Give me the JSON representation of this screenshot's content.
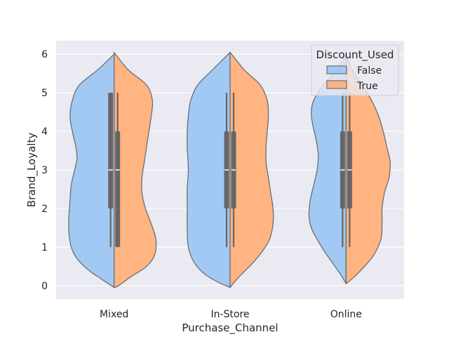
{
  "chart_data": {
    "type": "violin",
    "split": true,
    "xlabel": "Purchase_Channel",
    "ylabel": "Brand_Loyalty",
    "ylim": [
      -0.35,
      6.35
    ],
    "yticks": [
      0,
      1,
      2,
      3,
      4,
      5,
      6
    ],
    "categories": [
      "Mixed",
      "In-Store",
      "Online"
    ],
    "grid": true,
    "legend": {
      "title": "Discount_Used",
      "placement": "top-right",
      "entries": [
        {
          "label": "False",
          "color": "#a1c9f4"
        },
        {
          "label": "True",
          "color": "#ffb482"
        }
      ]
    },
    "colors": {
      "background": "#eaeaf2",
      "grid": "#ffffff",
      "edge": "#6e6e6e",
      "box": "#666666"
    },
    "series": [
      {
        "name": "False",
        "side": "left",
        "violins": [
          {
            "category": "Mixed",
            "y": [
              6.0,
              5.6,
              5.2,
              4.8,
              4.4,
              4.0,
              3.6,
              3.3,
              3.0,
              2.6,
              2.2,
              1.8,
              1.4,
              1.0,
              0.7,
              0.4,
              0.15,
              -0.05
            ],
            "width": [
              0.0,
              0.14,
              0.3,
              0.36,
              0.38,
              0.36,
              0.33,
              0.32,
              0.34,
              0.37,
              0.38,
              0.39,
              0.39,
              0.37,
              0.32,
              0.22,
              0.1,
              0.0
            ]
          },
          {
            "category": "In-Store",
            "y": [
              6.05,
              5.6,
              5.2,
              4.8,
              4.4,
              4.0,
              3.6,
              3.0,
              2.5,
              2.0,
              1.5,
              1.0,
              0.6,
              0.3,
              0.1,
              -0.05
            ],
            "width": [
              0.0,
              0.15,
              0.28,
              0.34,
              0.36,
              0.37,
              0.37,
              0.36,
              0.37,
              0.37,
              0.37,
              0.36,
              0.31,
              0.22,
              0.11,
              0.0
            ]
          },
          {
            "category": "Online",
            "y": [
              6.0,
              5.6,
              5.2,
              4.8,
              4.5,
              4.2,
              3.8,
              3.4,
              3.0,
              2.6,
              2.2,
              1.8,
              1.5,
              1.2,
              0.9,
              0.6,
              0.3,
              0.05
            ],
            "width": [
              0.0,
              0.08,
              0.2,
              0.28,
              0.3,
              0.29,
              0.26,
              0.24,
              0.25,
              0.28,
              0.31,
              0.32,
              0.3,
              0.25,
              0.19,
              0.12,
              0.05,
              0.0
            ]
          }
        ],
        "boxes": [
          {
            "category": "Mixed",
            "q1": 2,
            "median": 3,
            "q3": 5,
            "whisker_low": 1,
            "whisker_high": 5
          },
          {
            "category": "In-Store",
            "q1": 2,
            "median": 3,
            "q3": 4,
            "whisker_low": 1,
            "whisker_high": 5
          },
          {
            "category": "Online",
            "q1": 2,
            "median": 3,
            "q3": 4,
            "whisker_low": 1,
            "whisker_high": 5
          }
        ]
      },
      {
        "name": "True",
        "side": "right",
        "violins": [
          {
            "category": "Mixed",
            "y": [
              6.05,
              5.6,
              5.2,
              4.8,
              4.4,
              4.0,
              3.6,
              3.2,
              2.8,
              2.4,
              2.0,
              1.6,
              1.2,
              0.8,
              0.5,
              0.2,
              0.0,
              -0.05
            ],
            "width": [
              0.0,
              0.12,
              0.28,
              0.33,
              0.32,
              0.3,
              0.28,
              0.26,
              0.24,
              0.24,
              0.27,
              0.32,
              0.36,
              0.35,
              0.28,
              0.13,
              0.04,
              0.0
            ]
          },
          {
            "category": "In-Store",
            "y": [
              6.05,
              5.6,
              5.2,
              4.8,
              4.4,
              4.0,
              3.6,
              3.2,
              2.8,
              2.4,
              2.0,
              1.6,
              1.2,
              0.9,
              0.6,
              0.3,
              0.1,
              -0.05
            ],
            "width": [
              0.0,
              0.12,
              0.26,
              0.32,
              0.33,
              0.32,
              0.31,
              0.31,
              0.33,
              0.35,
              0.37,
              0.37,
              0.34,
              0.28,
              0.2,
              0.1,
              0.04,
              0.0
            ]
          },
          {
            "category": "Online",
            "y": [
              6.0,
              5.6,
              5.2,
              4.8,
              4.4,
              4.0,
              3.6,
              3.2,
              2.8,
              2.4,
              2.0,
              1.6,
              1.2,
              0.8,
              0.5,
              0.2,
              0.05
            ],
            "width": [
              0.0,
              0.05,
              0.14,
              0.22,
              0.28,
              0.32,
              0.35,
              0.38,
              0.37,
              0.33,
              0.31,
              0.31,
              0.3,
              0.24,
              0.16,
              0.06,
              0.0
            ]
          }
        ],
        "boxes": [
          {
            "category": "Mixed",
            "q1": 1,
            "median": 3,
            "q3": 4,
            "whisker_low": 1,
            "whisker_high": 5
          },
          {
            "category": "In-Store",
            "q1": 2,
            "median": 3,
            "q3": 4,
            "whisker_low": 1,
            "whisker_high": 5
          },
          {
            "category": "Online",
            "q1": 2,
            "median": 3,
            "q3": 4,
            "whisker_low": 1,
            "whisker_high": 5
          }
        ]
      }
    ]
  }
}
